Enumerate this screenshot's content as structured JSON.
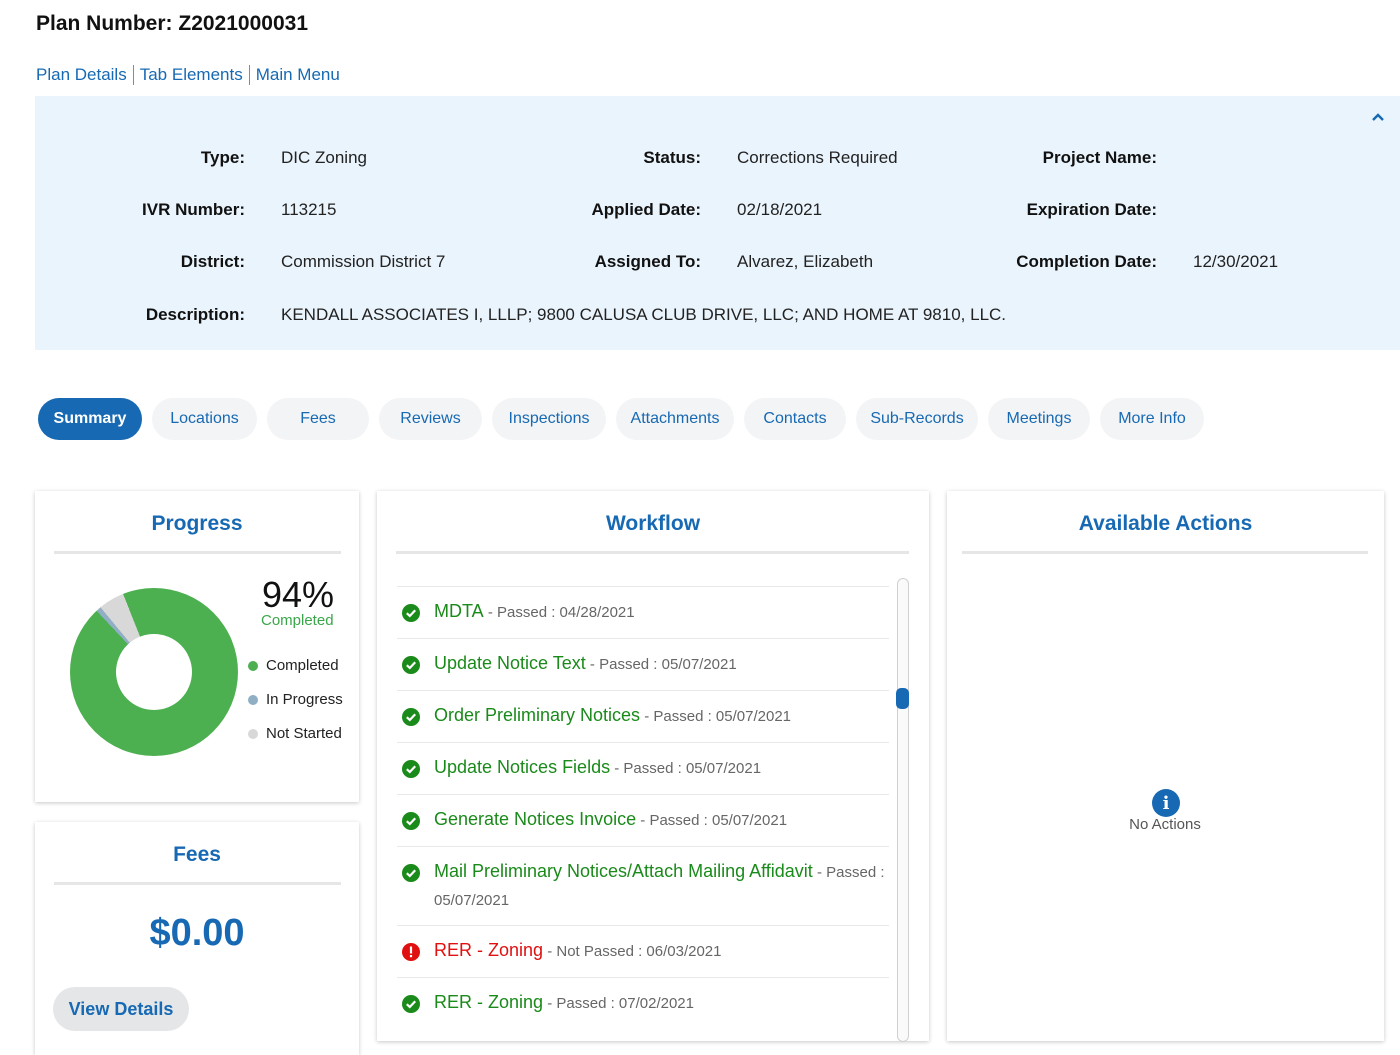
{
  "header": {
    "plan_label": "Plan Number:",
    "plan_number": "Z2021000031"
  },
  "links": [
    "Plan Details",
    "Tab Elements",
    "Main Menu"
  ],
  "info": {
    "type_label": "Type:",
    "type_value": "DIC Zoning",
    "status_label": "Status:",
    "status_value": "Corrections Required",
    "project_label": "Project Name:",
    "project_value": "",
    "ivr_label": "IVR Number:",
    "ivr_value": "113215",
    "applied_label": "Applied Date:",
    "applied_value": "02/18/2021",
    "expiration_label": "Expiration Date:",
    "expiration_value": "",
    "district_label": "District:",
    "district_value": "Commission District 7",
    "assigned_label": "Assigned To:",
    "assigned_value": "Alvarez, Elizabeth",
    "completion_label": "Completion Date:",
    "completion_value": "12/30/2021",
    "description_label": "Description:",
    "description_value": "KENDALL ASSOCIATES I, LLLP; 9800 CALUSA CLUB DRIVE, LLC; AND HOME AT 9810, LLC."
  },
  "tabs": [
    "Summary",
    "Locations",
    "Fees",
    "Reviews",
    "Inspections",
    "Attachments",
    "Contacts",
    "Sub-Records",
    "Meetings",
    "More Info"
  ],
  "progress": {
    "title": "Progress",
    "percent": "94%",
    "percent_label": "Completed",
    "completed_fraction": 0.94,
    "in_progress_fraction": 0.01,
    "not_started_fraction": 0.05,
    "legend": [
      "Completed",
      "In Progress",
      "Not Started"
    ],
    "colors": {
      "completed": "#4caf50",
      "in_progress": "#90aec4",
      "not_started": "#d8d8d8"
    }
  },
  "fees": {
    "title": "Fees",
    "amount": "$0.00",
    "button": "View Details"
  },
  "workflow": {
    "title": "Workflow",
    "items": [
      {
        "name": "MDTA",
        "meta": " - Passed : 04/28/2021",
        "status": "passed"
      },
      {
        "name": "Update Notice Text",
        "meta": " - Passed : 05/07/2021",
        "status": "passed"
      },
      {
        "name": "Order Preliminary Notices",
        "meta": " - Passed : 05/07/2021",
        "status": "passed"
      },
      {
        "name": "Update Notices Fields",
        "meta": " - Passed : 05/07/2021",
        "status": "passed"
      },
      {
        "name": "Generate Notices Invoice",
        "meta": " - Passed : 05/07/2021",
        "status": "passed"
      },
      {
        "name": "Mail Preliminary Notices/Attach Mailing Affidavit",
        "meta": " - Passed : 05/07/2021",
        "status": "passed"
      },
      {
        "name": "RER - Zoning",
        "meta": " - Not Passed : 06/03/2021",
        "status": "failed"
      },
      {
        "name": "RER - Zoning",
        "meta": " - Passed : 07/02/2021",
        "status": "passed"
      }
    ]
  },
  "actions": {
    "title": "Available Actions",
    "empty_text": "No Actions"
  }
}
